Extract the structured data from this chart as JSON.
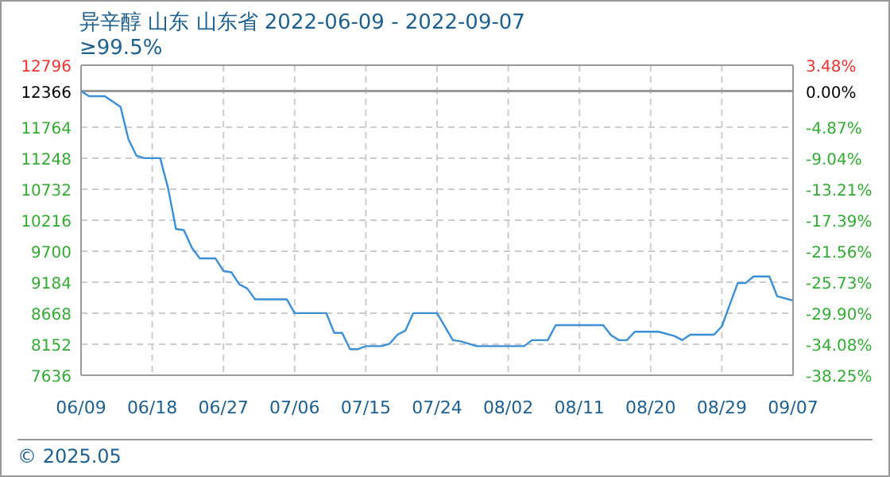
{
  "chart_data": {
    "type": "line",
    "title": "异辛醇 山东 山东省 2022-06-09 - 2022-09-07",
    "subtitle": "≥99.5%",
    "annotations": [
      "© 2025.05"
    ],
    "x": [
      "2022-06-09",
      "2022-06-10",
      "2022-06-12",
      "2022-06-13",
      "2022-06-14",
      "2022-06-15",
      "2022-06-16",
      "2022-06-17",
      "2022-06-19",
      "2022-06-20",
      "2022-06-21",
      "2022-06-22",
      "2022-06-23",
      "2022-06-24",
      "2022-06-26",
      "2022-06-27",
      "2022-06-28",
      "2022-06-29",
      "2022-06-30",
      "2022-07-01",
      "2022-07-05",
      "2022-07-06",
      "2022-07-10",
      "2022-07-11",
      "2022-07-12",
      "2022-07-13",
      "2022-07-14",
      "2022-07-15",
      "2022-07-17",
      "2022-07-18",
      "2022-07-19",
      "2022-07-20",
      "2022-07-21",
      "2022-07-24",
      "2022-07-26",
      "2022-07-27",
      "2022-07-29",
      "2022-08-04",
      "2022-08-05",
      "2022-08-07",
      "2022-08-08",
      "2022-08-14",
      "2022-08-15",
      "2022-08-16",
      "2022-08-17",
      "2022-08-18",
      "2022-08-21",
      "2022-08-23",
      "2022-08-24",
      "2022-08-25",
      "2022-08-28",
      "2022-08-29",
      "2022-08-31",
      "2022-09-01",
      "2022-09-02",
      "2022-09-04",
      "2022-09-05",
      "2022-09-07"
    ],
    "series": [
      {
        "color": "#3a8fd6",
        "values": [
          12366,
          12280,
          12280,
          12190,
          12100,
          11560,
          11290,
          11250,
          11250,
          10750,
          10070,
          10050,
          9760,
          9580,
          9580,
          9370,
          9350,
          9150,
          9080,
          8900,
          8900,
          8670,
          8670,
          8340,
          8340,
          8070,
          8070,
          8120,
          8120,
          8160,
          8310,
          8380,
          8670,
          8670,
          8220,
          8200,
          8120,
          8120,
          8220,
          8220,
          8470,
          8470,
          8300,
          8220,
          8220,
          8360,
          8360,
          8290,
          8220,
          8310,
          8310,
          8450,
          9170,
          9170,
          9280,
          9280,
          8950,
          8880
        ]
      }
    ],
    "xlim": [
      "2022-06-09",
      "2022-09-07"
    ],
    "xticks": [
      {
        "value": "2022-06-09",
        "label": "06/09"
      },
      {
        "value": "2022-06-18",
        "label": "06/18"
      },
      {
        "value": "2022-06-27",
        "label": "06/27"
      },
      {
        "value": "2022-07-06",
        "label": "07/06"
      },
      {
        "value": "2022-07-15",
        "label": "07/15"
      },
      {
        "value": "2022-07-24",
        "label": "07/24"
      },
      {
        "value": "2022-08-02",
        "label": "08/02"
      },
      {
        "value": "2022-08-11",
        "label": "08/11"
      },
      {
        "value": "2022-08-20",
        "label": "08/20"
      },
      {
        "value": "2022-08-29",
        "label": "08/29"
      },
      {
        "value": "2022-09-07",
        "label": "09/07"
      }
    ],
    "ylim": [
      7636,
      12796
    ],
    "yticks": [
      7636,
      8152,
      8668,
      9184,
      9700,
      10216,
      10732,
      11248,
      11764,
      12366,
      12796
    ],
    "y2lim": [
      -38.25,
      3.48
    ],
    "y2ticks": [
      {
        "value": -38.25,
        "label": "-38.25%"
      },
      {
        "value": -34.08,
        "label": "-34.08%"
      },
      {
        "value": -29.9,
        "label": "-29.90%"
      },
      {
        "value": -25.73,
        "label": "-25.73%"
      },
      {
        "value": -21.56,
        "label": "-21.56%"
      },
      {
        "value": -17.39,
        "label": "-17.39%"
      },
      {
        "value": -13.21,
        "label": "-13.21%"
      },
      {
        "value": -9.04,
        "label": "-9.04%"
      },
      {
        "value": -4.87,
        "label": "-4.87%"
      },
      {
        "value": 0,
        "label": "0.00%"
      },
      {
        "value": 3.48,
        "label": "3.48%"
      }
    ],
    "ref_lines": [
      {
        "axis": "y",
        "value": 12366,
        "color": "#999999"
      }
    ],
    "grid": true,
    "marker": "none",
    "line_style": "solid"
  }
}
